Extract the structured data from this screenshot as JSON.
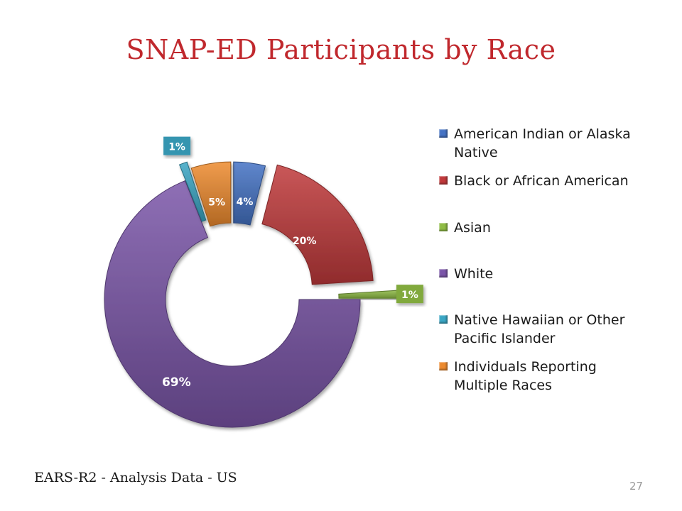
{
  "page": {
    "title": "SNAP-ED Participants by Race",
    "footer": "EARS-R2 - Analysis Data - US",
    "page_number": "27",
    "title_color": "#c0282d"
  },
  "chart_data": {
    "type": "pie",
    "style": "exploded doughnut",
    "title": "SNAP-ED Participants by Race",
    "legend_position": "right",
    "categories": [
      "American Indian or Alaska Native",
      "Black or African American",
      "Asian",
      "White",
      "Native Hawaiian or Other Pacific Islander",
      "Individuals Reporting Multiple Races"
    ],
    "values": [
      4,
      20,
      1,
      69,
      1,
      5
    ],
    "labels": [
      "4%",
      "20%",
      "1%",
      "69%",
      "1%",
      "5%"
    ],
    "colors": [
      "#4472c4",
      "#c0393b",
      "#8fbc45",
      "#7a55a8",
      "#3aa6c4",
      "#ed8a2e"
    ]
  }
}
